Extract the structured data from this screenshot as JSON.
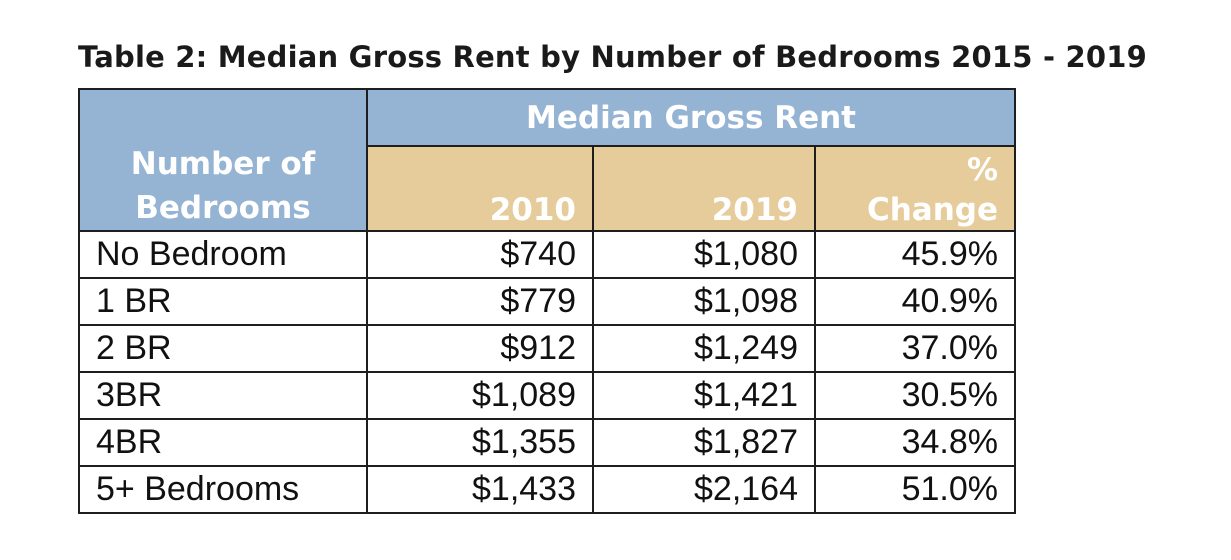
{
  "title": "Table 2: Median Gross Rent by Number of Bedrooms 2015 - 2019",
  "header": {
    "row_label_line1": "Number of",
    "row_label_line2": "Bedrooms",
    "group_label": "Median Gross Rent",
    "col_2010": "2010",
    "col_2019": "2019",
    "col_change_line1": "%",
    "col_change_line2": "Change"
  },
  "rows": [
    {
      "label": "No Bedroom",
      "v2010": "$740",
      "v2019": "$1,080",
      "change": "45.9%"
    },
    {
      "label": "1 BR",
      "v2010": "$779",
      "v2019": "$1,098",
      "change": "40.9%"
    },
    {
      "label": "2 BR",
      "v2010": "$912",
      "v2019": "$1,249",
      "change": "37.0%"
    },
    {
      "label": "3BR",
      "v2010": "$1,089",
      "v2019": "$1,421",
      "change": "30.5%"
    },
    {
      "label": "4BR",
      "v2010": "$1,355",
      "v2019": "$1,827",
      "change": "34.8%"
    },
    {
      "label": "5+ Bedrooms",
      "v2010": "$1,433",
      "v2019": "$2,164",
      "change": "51.0%"
    }
  ],
  "colors": {
    "header_blue": "#95b3d3",
    "header_gold": "#e6cc9b",
    "header_text": "#ffffff",
    "border": "#1e1e1e"
  }
}
